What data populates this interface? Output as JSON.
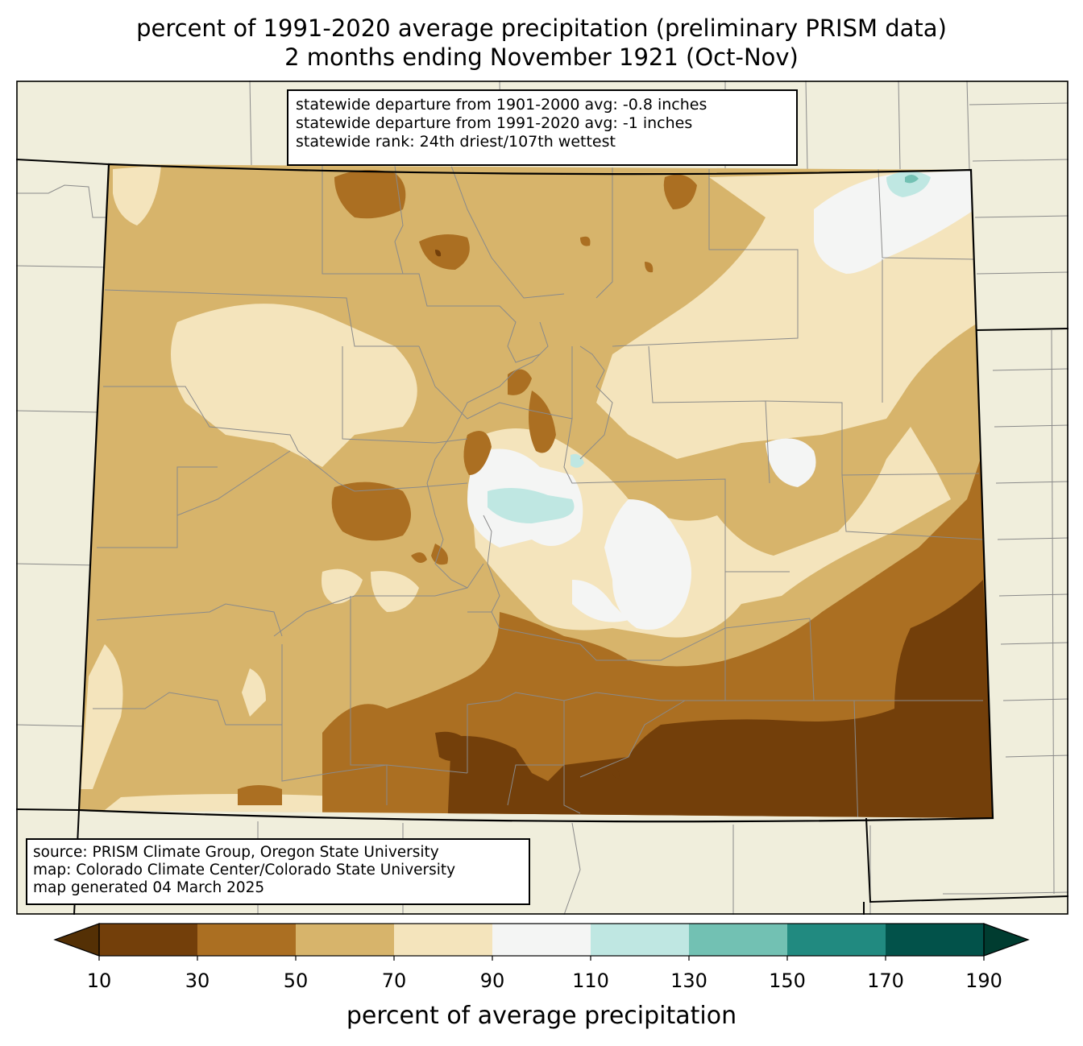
{
  "title": {
    "line1": "percent of 1991-2020 average precipitation (preliminary PRISM data)",
    "line2": "2 months ending November 1921 (Oct-Nov)"
  },
  "stats": {
    "line1": "statewide departure from 1901-2000 avg: -0.8 inches",
    "line2": "statewide departure from 1991-2020 avg: -1 inches",
    "line3": "statewide rank: 24th driest/107th wettest"
  },
  "source": {
    "line1": "source: PRISM Climate Group, Oregon State University",
    "line2": "map: Colorado Climate Center/Colorado State University",
    "line3": "map generated 04 March 2025"
  },
  "colorbar": {
    "label": "percent of average precipitation",
    "ticks": [
      "10",
      "30",
      "50",
      "70",
      "90",
      "110",
      "130",
      "150",
      "170",
      "190"
    ],
    "colors": [
      "#733f0a",
      "#ab6f22",
      "#d7b46b",
      "#f4e4bc",
      "#f4f5f4",
      "#bfe7e2",
      "#72c1b3",
      "#218a80",
      "#02524a"
    ],
    "under_color": "#543005",
    "over_color": "#003c30"
  },
  "map_colors": {
    "background": "#f0eedc",
    "c10_30": "#733f0a",
    "c30_50": "#ab6f22",
    "c50_70": "#d7b46b",
    "c70_90": "#f4e4bc",
    "c90_110": "#f4f5f4",
    "c110_130": "#bfe7e2",
    "c130_150": "#72c1b3"
  }
}
